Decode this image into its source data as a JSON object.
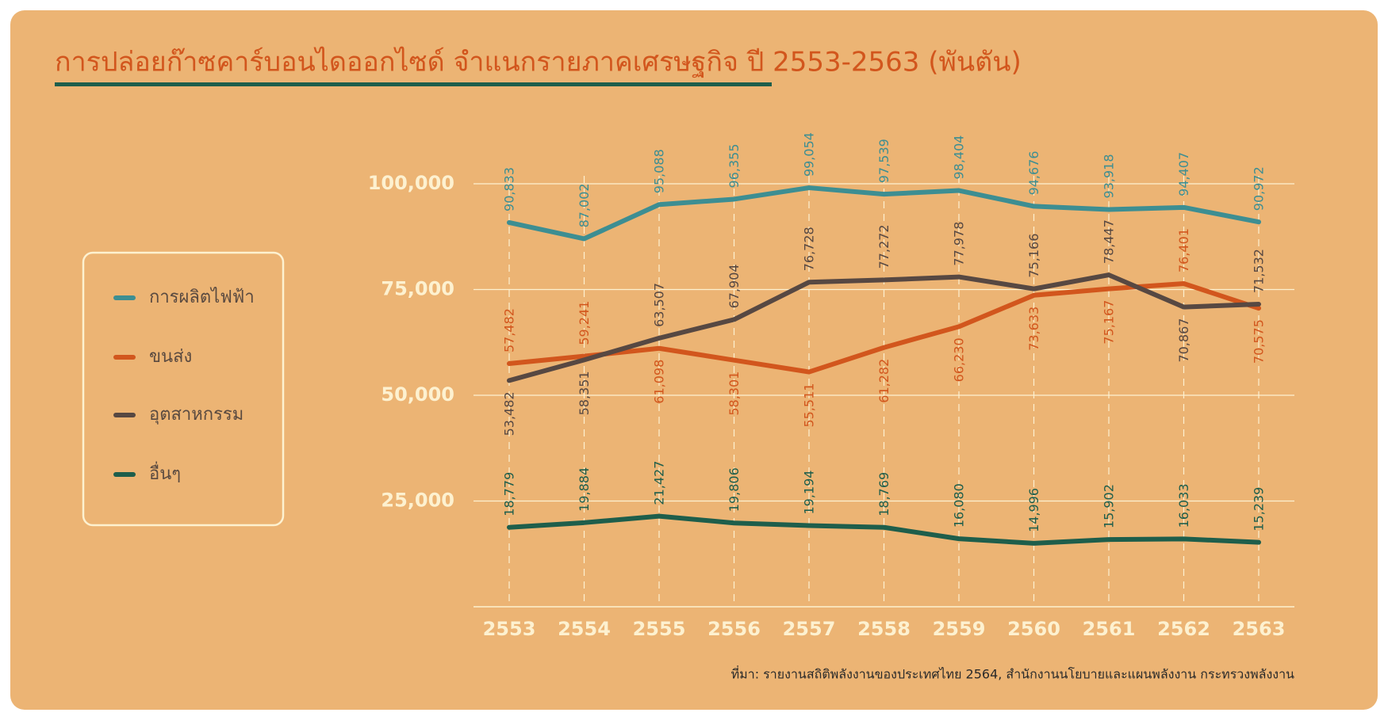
{
  "chart_data": {
    "type": "line",
    "title": "การปล่อยก๊าซคาร์บอนไดออกไซด์ จำแนกรายภาคเศรษฐกิจ ปี 2553-2563 (พันตัน)",
    "source": "ที่มา: รายงานสถิติพลังงานของประเทศไทย 2564, สำนักงานนโยบายและแผนพลังงาน กระทรวงพลังงาน",
    "categories": [
      "2553",
      "2554",
      "2555",
      "2556",
      "2557",
      "2558",
      "2559",
      "2560",
      "2561",
      "2562",
      "2563"
    ],
    "ylim": [
      0,
      100000
    ],
    "yticks": [
      {
        "value": 25000,
        "label": "25,000"
      },
      {
        "value": 50000,
        "label": "50,000"
      },
      {
        "value": 75000,
        "label": "75,000"
      },
      {
        "value": 100000,
        "label": "100,000"
      }
    ],
    "grid": true,
    "legend": "left",
    "series": [
      {
        "name": "การผลิตไฟฟ้า",
        "color": "#3d8e92",
        "values": [
          90833,
          87002,
          95088,
          96355,
          99054,
          97539,
          98404,
          94676,
          93918,
          94407,
          90972
        ],
        "value_labels": [
          "90,833",
          "87,002",
          "95,088",
          "96,355",
          "99,054",
          "97,539",
          "98,404",
          "94,676",
          "93,918",
          "94,407",
          "90,972"
        ]
      },
      {
        "name": "ขนส่ง",
        "color": "#d2561d",
        "values": [
          57482,
          59241,
          61098,
          58301,
          55511,
          61282,
          66230,
          73633,
          75167,
          76401,
          70575
        ],
        "value_labels": [
          "57,482",
          "59,241",
          "61,098",
          "58,301",
          "55,511",
          "61,282",
          "66,230",
          "73,633",
          "75,167",
          "76,401",
          "70,575"
        ]
      },
      {
        "name": "อุตสาหกรรม",
        "color": "#574842",
        "values": [
          53482,
          58351,
          63507,
          67904,
          76728,
          77272,
          77978,
          75166,
          78447,
          70867,
          71532
        ],
        "value_labels": [
          "53,482",
          "58,351",
          "63,507",
          "67,904",
          "76,728",
          "77,272",
          "77,978",
          "75,166",
          "78,447",
          "70,867",
          "71,532"
        ]
      },
      {
        "name": "อื่นๆ",
        "color": "#1e5e4b",
        "values": [
          18779,
          19884,
          21427,
          19806,
          19194,
          18769,
          16080,
          14996,
          15902,
          16033,
          15239
        ],
        "value_labels": [
          "18,779",
          "19,884",
          "21,427",
          "19,806",
          "19,194",
          "18,769",
          "16,080",
          "14,996",
          "15,902",
          "16,033",
          "15,239"
        ]
      }
    ]
  }
}
